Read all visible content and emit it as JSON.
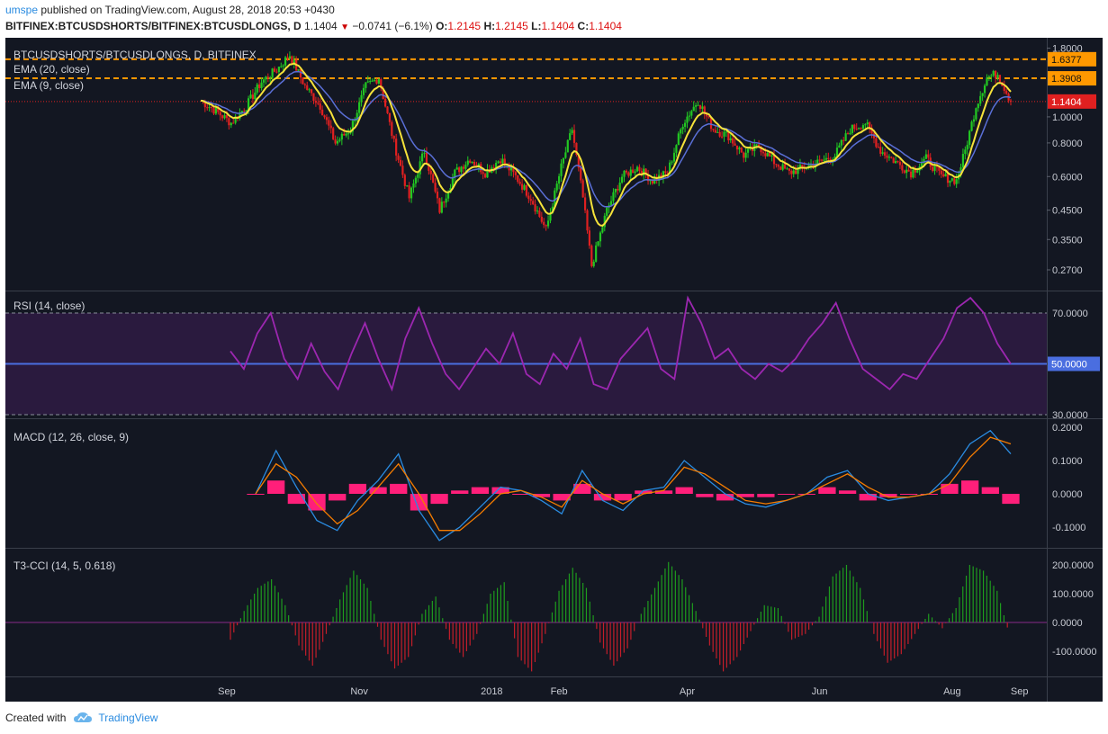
{
  "header": {
    "user": "umspe",
    "published": "published on TradingView.com, August 28, 2018 20:53 +0430",
    "symbol": "BITFINEX:BTCUSDSHORTS/BITFINEX:BTCUSDLONGS, D",
    "last": "1.1404",
    "change": "−0.0741 (−6.1%)",
    "o_label": "O:",
    "o_val": "1.2145",
    "h_label": "H:",
    "h_val": "1.2145",
    "l_label": "L:",
    "l_val": "1.1404",
    "c_label": "C:",
    "c_val": "1.1404"
  },
  "footer": {
    "created": "Created with",
    "brand": "TradingView"
  },
  "colors": {
    "bg": "#131722",
    "up": "#22c722",
    "down": "#e02020",
    "ema20": "#5a6fd6",
    "ema9": "#f5e23a",
    "rsi": "#9c27b0",
    "macd": "#2a8be0",
    "signal": "#f57c00",
    "hist": "#ff1f7a",
    "hline": "#ff9800"
  },
  "chart_data": [
    {
      "type": "candlestick",
      "pane": "price",
      "legend": [
        "BTCUSDSHORTS/BTCUSDLONGS, D, BITFINEX",
        "EMA (20, close)",
        "EMA (9, close)"
      ],
      "y_scale": "log",
      "ylim": [
        0.25,
        1.85
      ],
      "y_ticks": [
        "1.8000",
        "1.0000",
        "0.8000",
        "0.6000",
        "0.4500",
        "0.3500",
        "0.2700"
      ],
      "horizontal_lines": [
        1.6377,
        1.3908
      ],
      "last_price": 1.1404,
      "price_labels": [
        "1.6377",
        "1.3908",
        "1.1404"
      ],
      "x_labels": [
        "Sep",
        "Nov",
        "2018",
        "Feb",
        "Apr",
        "Jun",
        "Aug",
        "Sep"
      ],
      "close_path": [
        [
          "2017-08-20",
          1.15
        ],
        [
          "2017-08-27",
          1.05
        ],
        [
          "2017-09-03",
          0.95
        ],
        [
          "2017-09-10",
          1.1
        ],
        [
          "2017-09-17",
          1.35
        ],
        [
          "2017-09-24",
          1.5
        ],
        [
          "2017-09-30",
          1.7
        ],
        [
          "2017-10-07",
          1.3
        ],
        [
          "2017-10-14",
          1.1
        ],
        [
          "2017-10-21",
          0.8
        ],
        [
          "2017-10-28",
          0.9
        ],
        [
          "2017-11-04",
          1.3
        ],
        [
          "2017-11-10",
          1.4
        ],
        [
          "2017-11-17",
          0.8
        ],
        [
          "2017-11-24",
          0.5
        ],
        [
          "2017-12-01",
          0.75
        ],
        [
          "2017-12-08",
          0.45
        ],
        [
          "2017-12-15",
          0.62
        ],
        [
          "2017-12-22",
          0.7
        ],
        [
          "2017-12-29",
          0.62
        ],
        [
          "2018-01-05",
          0.7
        ],
        [
          "2018-01-12",
          0.6
        ],
        [
          "2018-01-19",
          0.5
        ],
        [
          "2018-01-26",
          0.38
        ],
        [
          "2018-02-02",
          0.65
        ],
        [
          "2018-02-07",
          0.9
        ],
        [
          "2018-02-12",
          0.5
        ],
        [
          "2018-02-16",
          0.28
        ],
        [
          "2018-02-23",
          0.45
        ],
        [
          "2018-03-02",
          0.6
        ],
        [
          "2018-03-09",
          0.65
        ],
        [
          "2018-03-16",
          0.58
        ],
        [
          "2018-03-23",
          0.62
        ],
        [
          "2018-03-30",
          0.95
        ],
        [
          "2018-04-06",
          1.15
        ],
        [
          "2018-04-13",
          0.9
        ],
        [
          "2018-04-20",
          0.85
        ],
        [
          "2018-04-27",
          0.72
        ],
        [
          "2018-05-04",
          0.78
        ],
        [
          "2018-05-11",
          0.68
        ],
        [
          "2018-05-18",
          0.62
        ],
        [
          "2018-05-25",
          0.65
        ],
        [
          "2018-06-01",
          0.68
        ],
        [
          "2018-06-08",
          0.72
        ],
        [
          "2018-06-15",
          0.9
        ],
        [
          "2018-06-22",
          0.95
        ],
        [
          "2018-06-29",
          0.75
        ],
        [
          "2018-07-06",
          0.68
        ],
        [
          "2018-07-13",
          0.62
        ],
        [
          "2018-07-20",
          0.7
        ],
        [
          "2018-07-27",
          0.6
        ],
        [
          "2018-08-03",
          0.58
        ],
        [
          "2018-08-07",
          0.75
        ],
        [
          "2018-08-12",
          1.1
        ],
        [
          "2018-08-17",
          1.4
        ],
        [
          "2018-08-22",
          1.45
        ],
        [
          "2018-08-28",
          1.1404
        ]
      ]
    },
    {
      "type": "line",
      "pane": "rsi",
      "legend": [
        "RSI (14, close)"
      ],
      "ylim": [
        30,
        70
      ],
      "y_ticks": [
        "70.0000",
        "30.0000"
      ],
      "level_label": "50.0000",
      "values": [
        55,
        48,
        62,
        70,
        52,
        44,
        58,
        47,
        40,
        54,
        66,
        52,
        40,
        60,
        72,
        58,
        46,
        40,
        48,
        56,
        50,
        62,
        46,
        42,
        54,
        48,
        60,
        42,
        40,
        52,
        58,
        64,
        48,
        44,
        76,
        66,
        52,
        56,
        48,
        44,
        50,
        47,
        52,
        60,
        66,
        74,
        60,
        48,
        44,
        40,
        46,
        44,
        52,
        60,
        72,
        76,
        70,
        58,
        50
      ]
    },
    {
      "type": "line",
      "pane": "macd",
      "legend": [
        "MACD (12, 26, close, 9)"
      ],
      "y_ticks": [
        "0.2000",
        "0.1000",
        "0.0000",
        "-0.1000"
      ],
      "series": [
        {
          "name": "MACD",
          "values": [
            0.0,
            0.13,
            0.02,
            -0.08,
            -0.11,
            -0.02,
            0.04,
            0.12,
            -0.05,
            -0.14,
            -0.1,
            -0.04,
            0.02,
            0.01,
            -0.02,
            -0.06,
            0.07,
            -0.02,
            -0.05,
            0.01,
            0.02,
            0.1,
            0.05,
            0.0,
            -0.03,
            -0.04,
            -0.02,
            0.0,
            0.05,
            0.07,
            0.0,
            -0.02,
            -0.01,
            0.0,
            0.06,
            0.15,
            0.19,
            0.12
          ]
        },
        {
          "name": "Signal",
          "values": [
            0.0,
            0.09,
            0.05,
            -0.03,
            -0.09,
            -0.05,
            0.02,
            0.09,
            0.0,
            -0.11,
            -0.11,
            -0.06,
            0.0,
            0.01,
            -0.01,
            -0.04,
            0.04,
            0.0,
            -0.03,
            0.0,
            0.01,
            0.08,
            0.06,
            0.02,
            -0.02,
            -0.03,
            -0.02,
            0.0,
            0.03,
            0.06,
            0.02,
            -0.01,
            -0.01,
            0.0,
            0.03,
            0.11,
            0.17,
            0.15
          ]
        },
        {
          "name": "Histogram",
          "values": [
            0.0,
            0.04,
            -0.03,
            -0.05,
            -0.02,
            0.03,
            0.02,
            0.03,
            -0.05,
            -0.03,
            0.01,
            0.02,
            0.02,
            0.0,
            -0.01,
            -0.02,
            0.03,
            -0.02,
            -0.02,
            0.01,
            0.01,
            0.02,
            -0.01,
            -0.02,
            -0.01,
            -0.01,
            0.0,
            0.0,
            0.02,
            0.01,
            -0.02,
            -0.01,
            0.0,
            0.0,
            0.03,
            0.04,
            0.02,
            -0.03
          ]
        }
      ]
    },
    {
      "type": "bar",
      "pane": "cci",
      "legend": [
        "T3-CCI (14, 5, 0.618)"
      ],
      "y_ticks": [
        "200.0000",
        "100.0000",
        "0.0000",
        "-100.0000"
      ],
      "values": [
        -60,
        40,
        120,
        150,
        60,
        -80,
        -150,
        -40,
        80,
        180,
        120,
        -60,
        -160,
        -120,
        30,
        90,
        -60,
        -120,
        -40,
        100,
        140,
        -120,
        -170,
        -40,
        110,
        190,
        120,
        -70,
        -150,
        -90,
        30,
        120,
        210,
        150,
        40,
        -80,
        -170,
        -120,
        -30,
        60,
        50,
        -60,
        -40,
        20,
        160,
        200,
        120,
        -40,
        -140,
        -110,
        -40,
        30,
        -20,
        50,
        200,
        180,
        110,
        -60
      ]
    }
  ]
}
